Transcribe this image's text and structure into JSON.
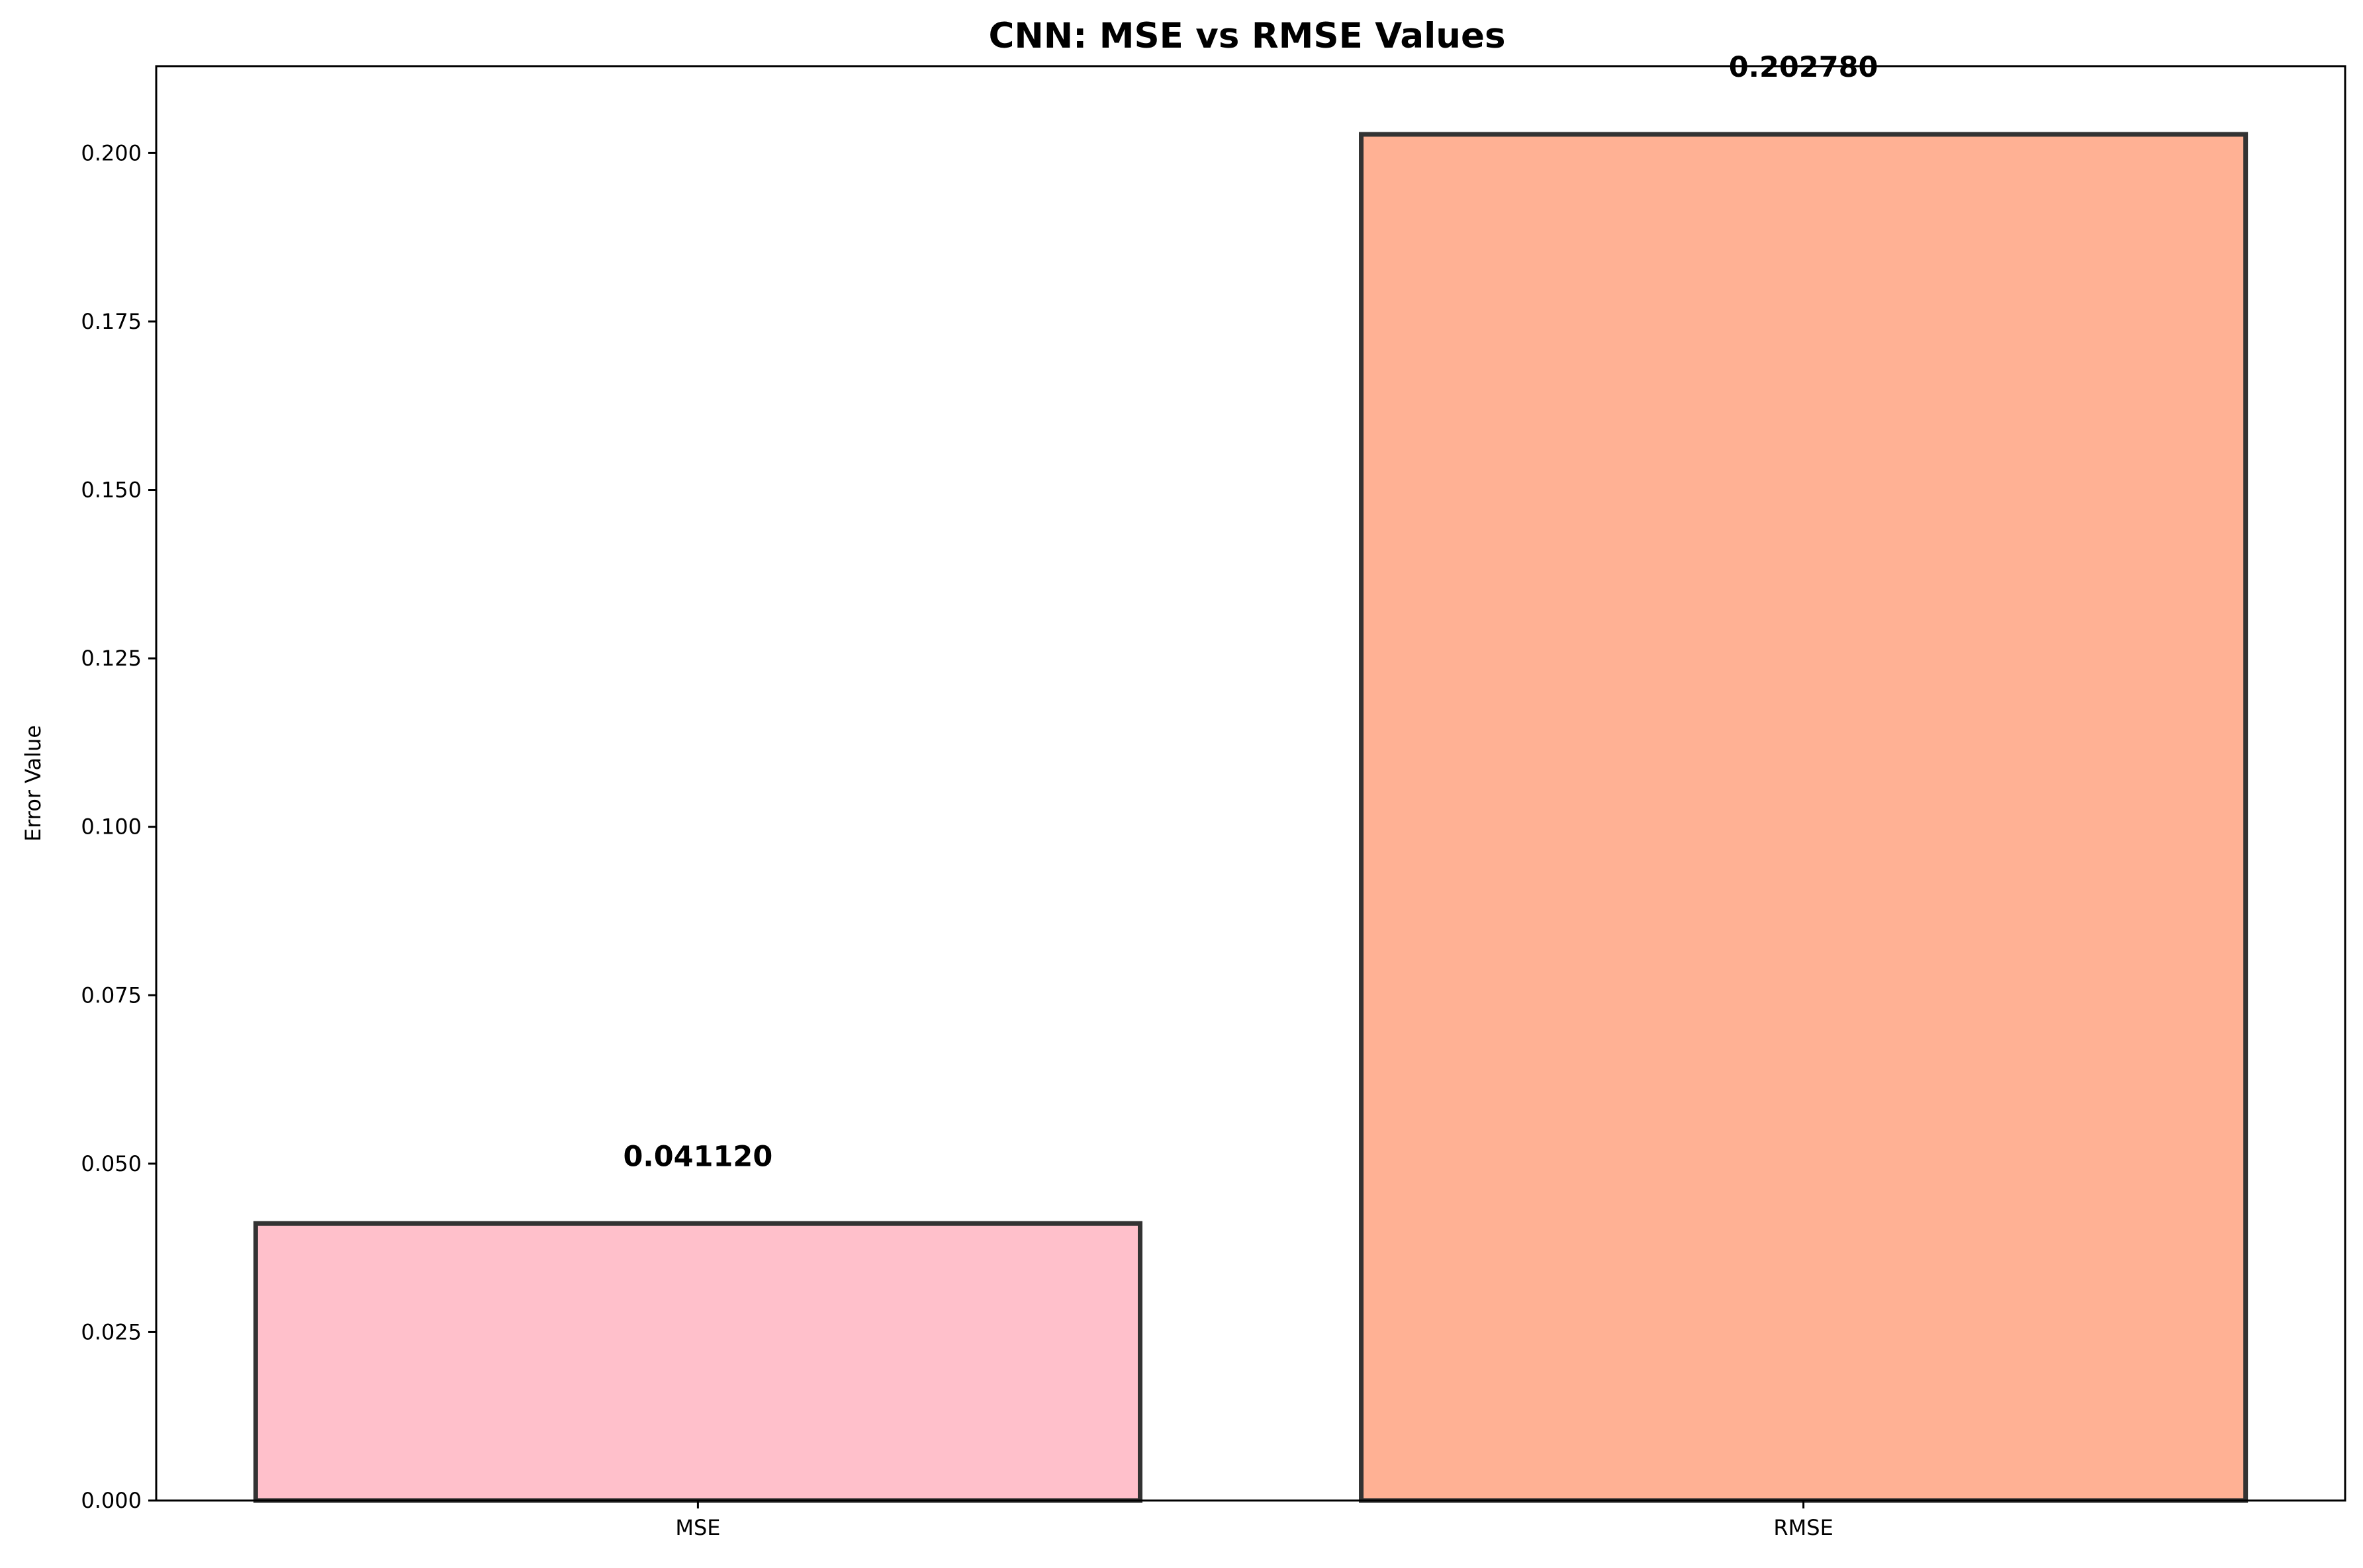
{
  "chart_data": {
    "type": "bar",
    "title": "CNN: MSE vs RMSE Values",
    "xlabel": "",
    "ylabel": "Error Value",
    "categories": [
      "MSE",
      "RMSE"
    ],
    "values": [
      0.04112,
      0.20278
    ],
    "value_labels": [
      "0.041120",
      "0.202780"
    ],
    "bar_colors": [
      "#ffc0cb",
      "#ffb194"
    ],
    "bar_edge_color": "#333333",
    "ylim": [
      0,
      0.2129
    ],
    "yticks": [
      0.0,
      0.025,
      0.05,
      0.075,
      0.1,
      0.125,
      0.15,
      0.175,
      0.2
    ],
    "ytick_labels": [
      "0.000",
      "0.025",
      "0.050",
      "0.075",
      "0.100",
      "0.125",
      "0.150",
      "0.175",
      "0.200"
    ],
    "grid": false,
    "legend": "none"
  }
}
